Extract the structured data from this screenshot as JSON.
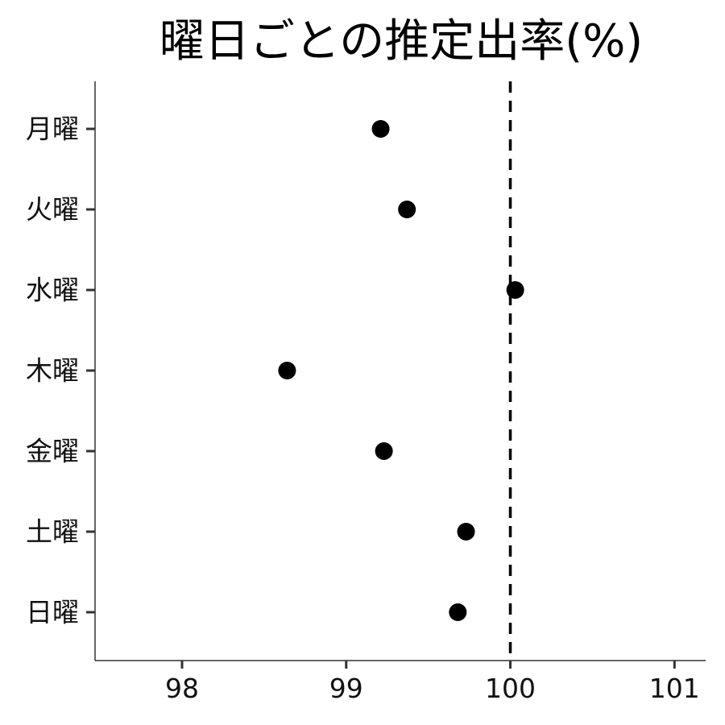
{
  "chart_data": {
    "type": "scatter",
    "title": "曜日ごとの推定出率(%)",
    "xlabel": "",
    "ylabel": "",
    "xlim": [
      97.47,
      101.19
    ],
    "x_ticks": [
      "98",
      "99",
      "100",
      "101"
    ],
    "x_tick_values": [
      98,
      99,
      100,
      101
    ],
    "categories": [
      "月曜",
      "火曜",
      "水曜",
      "木曜",
      "金曜",
      "土曜",
      "日曜"
    ],
    "values": [
      99.21,
      99.37,
      100.03,
      98.64,
      99.23,
      99.73,
      99.68
    ],
    "reference_line": {
      "x": 100,
      "style": "dashed"
    },
    "grid": false,
    "legend": "none",
    "marker_color": "#000000"
  }
}
